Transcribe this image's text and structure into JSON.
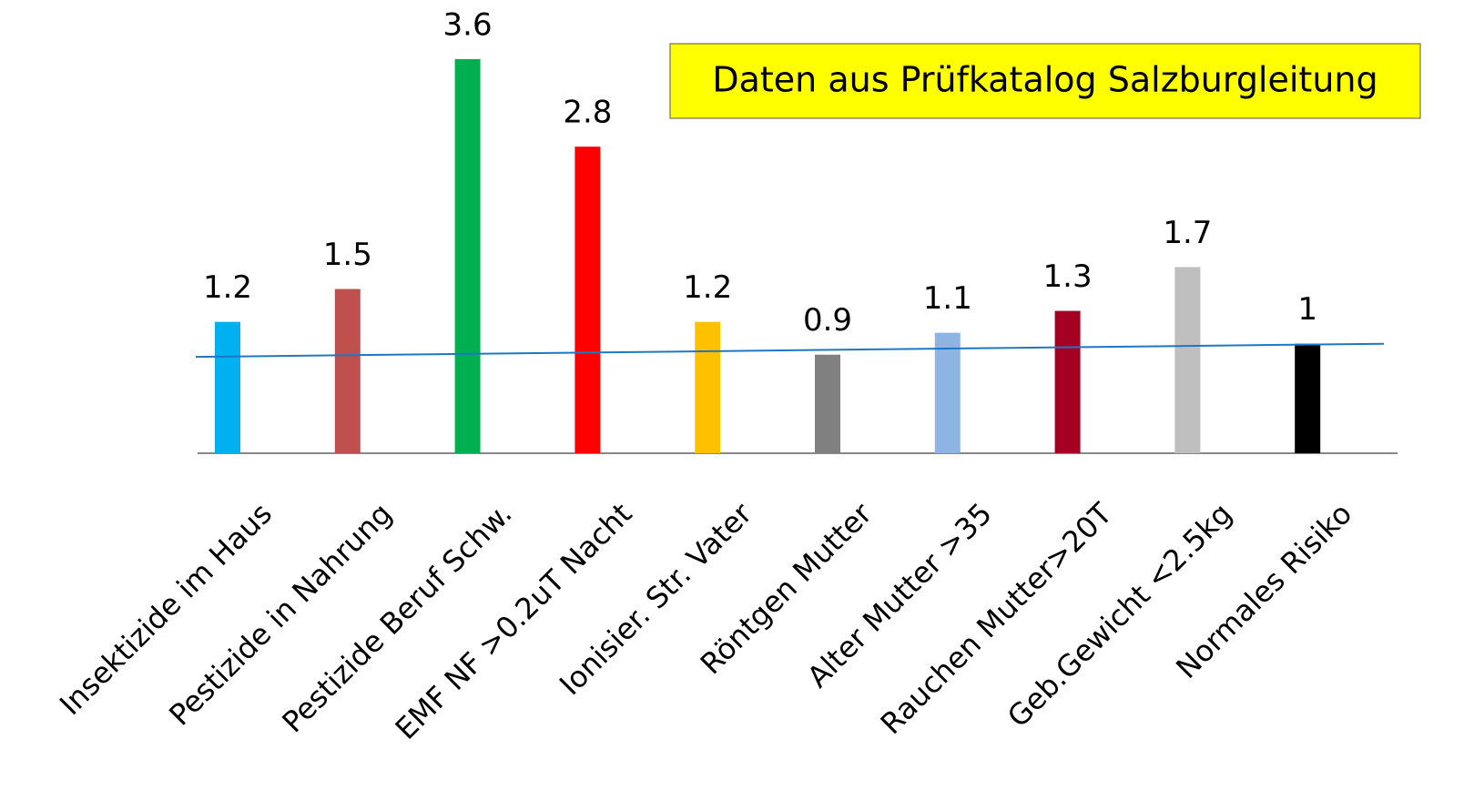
{
  "chart_data": {
    "type": "bar",
    "title": "Daten aus Prüfkatalog Salzburgleitung",
    "categories": [
      "Insektizide im Haus",
      "Pestizide in Nahrung",
      "Pestizide Beruf Schw.",
      "EMF NF >0.2uT Nacht",
      "Ionisier. Str. Vater",
      "Röntgen Mutter",
      "Alter Mutter >35",
      "Rauchen Mutter>20T",
      "Geb.Gewicht <2.5kg",
      "Normales Risiko"
    ],
    "values": [
      1.2,
      1.5,
      3.6,
      2.8,
      1.2,
      0.9,
      1.1,
      1.3,
      1.7,
      1
    ],
    "colors": [
      "#00b0f0",
      "#c0504d",
      "#00b050",
      "#ff0000",
      "#ffc000",
      "#808080",
      "#8db4e2",
      "#a50021",
      "#bfbfbf",
      "#000000"
    ],
    "trend_line": {
      "color": "#1f77c4",
      "values": [
        0.88,
        1.0
      ]
    }
  }
}
